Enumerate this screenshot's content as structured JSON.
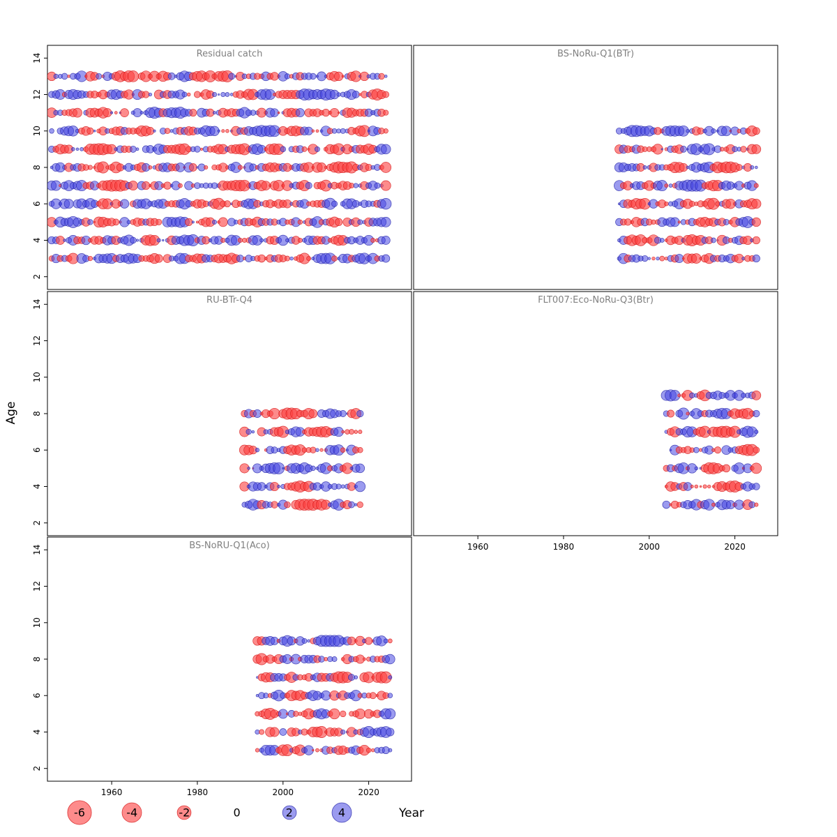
{
  "figure": {
    "ylab": "Age",
    "xlab": "Year",
    "background": "#ffffff",
    "panel_title_color": "#808080",
    "colors": {
      "negative_fill": "rgba(252,61,61,0.6)",
      "negative_stroke": "rgba(214,28,28,0.85)",
      "positive_fill": "rgba(64,64,224,0.52)",
      "positive_stroke": "rgba(42,42,172,0.85)"
    }
  },
  "chart_data": {
    "type": "scatter",
    "subtype": "bubble-residuals",
    "title": "",
    "xlabel": "Year",
    "ylabel": "Age",
    "x_ticks": [
      1960,
      1980,
      2000,
      2020
    ],
    "y_ticks": [
      2,
      4,
      6,
      8,
      10,
      12,
      14
    ],
    "xlim": [
      1945,
      2030
    ],
    "ylim": [
      1.3,
      14.7
    ],
    "value_range": [
      -6,
      6
    ],
    "values_note": "Residual bubble values per (year, age): sign by color (red negative, blue positive), magnitude by area; individual values generated deterministically from per-panel seed within value_range.",
    "legend": {
      "values": [
        -6,
        -4,
        -2,
        0,
        2,
        4
      ],
      "position": "bottom"
    },
    "panels": [
      {
        "title": "Residual catch",
        "grid": [
          0,
          0
        ],
        "ages": [
          3,
          4,
          5,
          6,
          7,
          8,
          9,
          10,
          11,
          12,
          13
        ],
        "years": {
          "start": 1946,
          "end": 2024
        },
        "seed": 101
      },
      {
        "title": "BS-NoRu-Q1(BTr)",
        "grid": [
          0,
          1
        ],
        "ages": [
          3,
          4,
          5,
          6,
          7,
          8,
          9,
          10
        ],
        "years": {
          "start": 1993,
          "end": 2025
        },
        "seed": 102
      },
      {
        "title": "RU-BTr-Q4",
        "grid": [
          1,
          0
        ],
        "ages": [
          3,
          4,
          5,
          6,
          7,
          8
        ],
        "years": {
          "start": 1991,
          "end": 2018
        },
        "seed": 103
      },
      {
        "title": "FLT007:Eco-NoRu-Q3(Btr)",
        "grid": [
          1,
          1
        ],
        "ages": [
          3,
          4,
          5,
          6,
          7,
          8,
          9
        ],
        "years": {
          "start": 2004,
          "end": 2025
        },
        "seed": 104
      },
      {
        "title": "BS-NoRU-Q1(Aco)",
        "grid": [
          2,
          0
        ],
        "ages": [
          3,
          4,
          5,
          6,
          7,
          8,
          9
        ],
        "years": {
          "start": 1994,
          "end": 2025
        },
        "seed": 105
      }
    ]
  }
}
